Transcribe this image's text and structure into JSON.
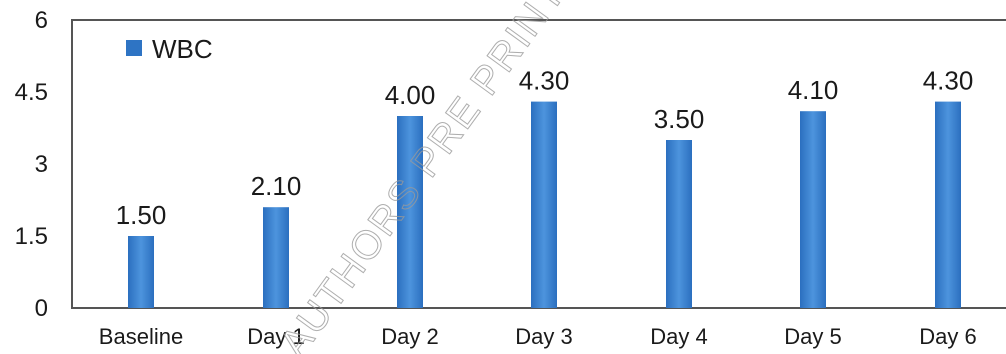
{
  "chart_data": {
    "type": "bar",
    "categories": [
      "Baseline",
      "Day 1",
      "Day 2",
      "Day 3",
      "Day 4",
      "Day 5",
      "Day 6"
    ],
    "series": [
      {
        "name": "WBC",
        "values": [
          1.5,
          2.1,
          4.0,
          4.3,
          3.5,
          4.1,
          4.3
        ],
        "labels": [
          "1.50",
          "2.10",
          "4.00",
          "4.30",
          "3.50",
          "4.10",
          "4.30"
        ]
      }
    ],
    "yticks": [
      "0",
      "1.5",
      "3",
      "4.5",
      "6"
    ],
    "ylim": [
      0,
      6
    ],
    "legend_position": "top-left",
    "bar_color": "#2e74c4",
    "watermark": "AUTHORS PRE PRINT"
  }
}
